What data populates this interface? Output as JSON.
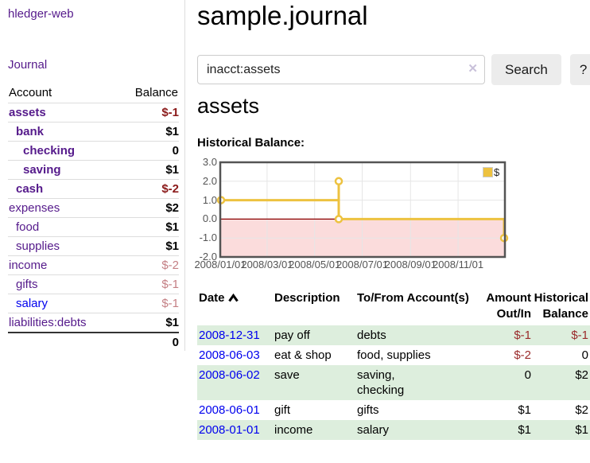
{
  "app": {
    "title": "hledger-web"
  },
  "sidebar": {
    "journal_link": "Journal",
    "accounts": {
      "header_account": "Account",
      "header_balance": "Balance",
      "rows": [
        {
          "name": "assets",
          "level": 1,
          "strong": true,
          "balance": "$-1",
          "neg": "dark",
          "bal_bold": true
        },
        {
          "name": "bank",
          "level": 2,
          "strong": true,
          "balance": "$1",
          "neg": "",
          "bal_bold": true
        },
        {
          "name": "checking",
          "level": 3,
          "strong": true,
          "balance": "0",
          "neg": "",
          "bal_bold": true
        },
        {
          "name": "saving",
          "level": 3,
          "strong": true,
          "balance": "$1",
          "neg": "",
          "bal_bold": true
        },
        {
          "name": "cash",
          "level": 2,
          "strong": true,
          "balance": "$-2",
          "neg": "dark",
          "bal_bold": true
        },
        {
          "name": "expenses",
          "level": 1,
          "strong": false,
          "balance": "$2",
          "neg": "",
          "bal_bold": true
        },
        {
          "name": "food",
          "level": 2,
          "strong": false,
          "balance": "$1",
          "neg": "",
          "bal_bold": true
        },
        {
          "name": "supplies",
          "level": 2,
          "strong": false,
          "balance": "$1",
          "neg": "",
          "bal_bold": true
        },
        {
          "name": "income",
          "level": 1,
          "strong": false,
          "balance": "$-2",
          "neg": "light",
          "bal_bold": false
        },
        {
          "name": "gifts",
          "level": 2,
          "strong": false,
          "balance": "$-1",
          "neg": "light",
          "bal_bold": false
        },
        {
          "name": "salary",
          "level": 2,
          "strong": false,
          "balance": "$-1",
          "neg": "light",
          "bal_bold": false,
          "unvisited": true
        },
        {
          "name": "liabilities:debts",
          "level": 1,
          "strong": false,
          "balance": "$1",
          "neg": "",
          "bal_bold": true
        }
      ],
      "total": "0"
    }
  },
  "main": {
    "title": "sample.journal",
    "search": {
      "query": "inacct:assets",
      "clear_icon": "✕",
      "button_label": "Search",
      "help_label": "?"
    },
    "account_heading": "assets",
    "chart_label": "Historical Balance:"
  },
  "chart_data": {
    "type": "line",
    "title": "Historical Balance of assets",
    "step": true,
    "series": [
      {
        "name": "$",
        "color": "#edc240",
        "points": [
          [
            "2008-01-01",
            1
          ],
          [
            "2008-06-01",
            2
          ],
          [
            "2008-06-02",
            2
          ],
          [
            "2008-06-03",
            0
          ],
          [
            "2008-12-31",
            -1
          ]
        ]
      }
    ],
    "ylim": [
      -2.0,
      3.0
    ],
    "y_ticks": [
      "3.0",
      "2.0",
      "1.0",
      "0.0",
      "-1.0",
      "-2.0"
    ],
    "x_ticks": [
      "2008/01/01",
      "2008/03/01",
      "2008/05/01",
      "2008/07/01",
      "2008/09/01",
      "2008/11/01"
    ],
    "grid": true,
    "negative_region_color": "#fbdcdc",
    "zero_line_color": "#8b0000",
    "legend": {
      "label": "$",
      "position": "top-right"
    }
  },
  "register": {
    "headers": {
      "date": "Date",
      "description": "Description",
      "account": "To/From Account(s)",
      "amount": "Amount Out/In",
      "balance": "Historical Balance"
    },
    "rows": [
      {
        "date": "2008-12-31",
        "description": "pay off",
        "accounts": "debts",
        "amount": "$-1",
        "amount_neg": true,
        "balance": "$-1",
        "balance_neg": true,
        "stripe": true
      },
      {
        "date": "2008-06-03",
        "description": "eat & shop",
        "accounts": "food, supplies",
        "amount": "$-2",
        "amount_neg": true,
        "balance": "0",
        "balance_neg": false,
        "stripe": false
      },
      {
        "date": "2008-06-02",
        "description": "save",
        "accounts": "saving,\nchecking",
        "amount": "0",
        "amount_neg": false,
        "balance": "$2",
        "balance_neg": false,
        "stripe": true
      },
      {
        "date": "2008-06-01",
        "description": "gift",
        "accounts": "gifts",
        "amount": "$1",
        "amount_neg": false,
        "balance": "$2",
        "balance_neg": false,
        "stripe": false
      },
      {
        "date": "2008-01-01",
        "description": "income",
        "accounts": "salary",
        "amount": "$1",
        "amount_neg": false,
        "balance": "$1",
        "balance_neg": false,
        "stripe": true
      }
    ]
  }
}
